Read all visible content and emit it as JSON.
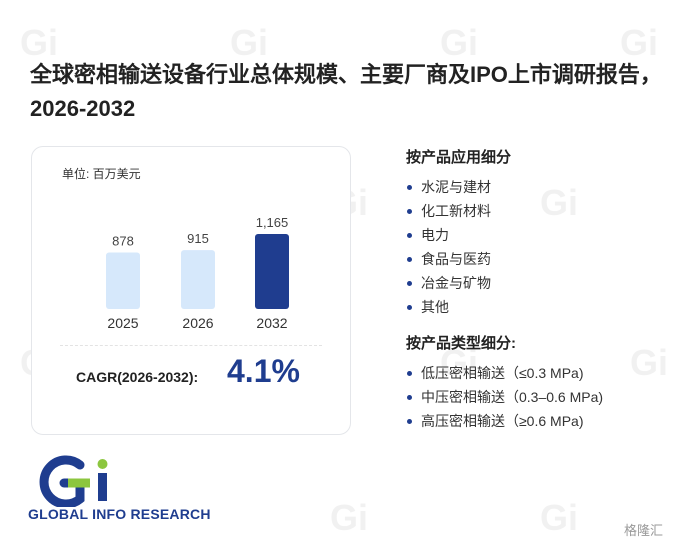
{
  "title": "全球密相输送设备行业总体规模、主要厂商及IPO上市调研报告，2026-2032",
  "unit_label": "单位: 百万美元",
  "chart_data": {
    "type": "bar",
    "categories": [
      "2025",
      "2026",
      "2032"
    ],
    "values": [
      878,
      915,
      1165
    ],
    "value_labels": [
      "878",
      "915",
      "1,165"
    ],
    "ylabel": "",
    "ylim": [
      0,
      1250
    ],
    "grid": false,
    "colors": [
      "#d6e8fb",
      "#d6e8fb",
      "#1f3d8f"
    ]
  },
  "cagr": {
    "label": "CAGR(2026-2032):",
    "value": "4.1%"
  },
  "segment_by_application": {
    "title": "按产品应用细分",
    "items": [
      "水泥与建材",
      "化工新材料",
      "电力",
      "食品与医药",
      "冶金与矿物",
      "其他"
    ]
  },
  "segment_by_type": {
    "title": "按产品类型细分:",
    "items": [
      "低压密相输送（≤0.3 MPa)",
      "中压密相输送（0.3–0.6 MPa)",
      "高压密相输送（≥0.6 MPa)"
    ]
  },
  "logo": {
    "text": "GLOBAL INFO RESEARCH"
  },
  "footer_brand": "格隆汇",
  "colors": {
    "accent": "#1f3d8f",
    "bar_light": "#d6e8fb",
    "logo_green": "#8cc63f"
  }
}
